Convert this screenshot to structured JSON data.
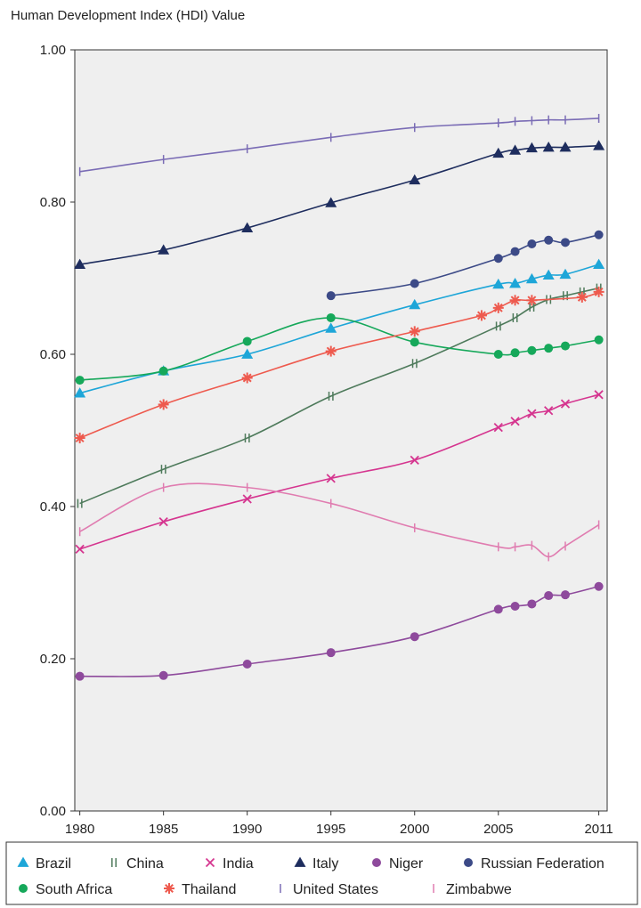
{
  "chart_data": {
    "type": "line",
    "title": "",
    "ylabel": "Human Development Index (HDI) Value",
    "xlabel": "",
    "ylim": [
      0,
      1
    ],
    "yticks": [
      "0.00",
      "0.20",
      "0.40",
      "0.60",
      "0.80",
      "1.00"
    ],
    "xticks": [
      "1980",
      "1985",
      "1990",
      "1995",
      "2000",
      "2005",
      "2011"
    ],
    "grid": false,
    "legend_position": "bottom",
    "series": [
      {
        "name": "Brazil",
        "color": "#1ea6d8",
        "marker": "triangle",
        "points": [
          [
            1980,
            0.549
          ],
          [
            1985,
            0.578
          ],
          [
            1990,
            0.6
          ],
          [
            1995,
            0.634
          ],
          [
            2000,
            0.665
          ],
          [
            2005,
            0.692
          ],
          [
            2006,
            0.693
          ],
          [
            2007,
            0.699
          ],
          [
            2008,
            0.704
          ],
          [
            2009,
            0.705
          ],
          [
            2011,
            0.718
          ]
        ]
      },
      {
        "name": "China",
        "color": "#4e7a5b",
        "marker": "double-tick",
        "points": [
          [
            1980,
            0.404
          ],
          [
            1985,
            0.449
          ],
          [
            1990,
            0.49
          ],
          [
            1995,
            0.545
          ],
          [
            2000,
            0.588
          ],
          [
            2005,
            0.637
          ],
          [
            2006,
            0.648
          ],
          [
            2007,
            0.662
          ],
          [
            2008,
            0.672
          ],
          [
            2009,
            0.677
          ],
          [
            2010,
            0.682
          ],
          [
            2011,
            0.687
          ]
        ]
      },
      {
        "name": "India",
        "color": "#d5358f",
        "marker": "x",
        "points": [
          [
            1980,
            0.344
          ],
          [
            1985,
            0.38
          ],
          [
            1990,
            0.41
          ],
          [
            1995,
            0.437
          ],
          [
            2000,
            0.461
          ],
          [
            2005,
            0.504
          ],
          [
            2006,
            0.512
          ],
          [
            2007,
            0.522
          ],
          [
            2008,
            0.526
          ],
          [
            2009,
            0.535
          ],
          [
            2011,
            0.547
          ]
        ]
      },
      {
        "name": "Italy",
        "color": "#1e2d5e",
        "marker": "triangle",
        "points": [
          [
            1980,
            0.718
          ],
          [
            1985,
            0.737
          ],
          [
            1990,
            0.766
          ],
          [
            1995,
            0.799
          ],
          [
            2000,
            0.829
          ],
          [
            2005,
            0.864
          ],
          [
            2006,
            0.868
          ],
          [
            2007,
            0.871
          ],
          [
            2008,
            0.872
          ],
          [
            2009,
            0.872
          ],
          [
            2011,
            0.874
          ]
        ]
      },
      {
        "name": "Niger",
        "color": "#8e4a9c",
        "marker": "circle",
        "points": [
          [
            1980,
            0.177
          ],
          [
            1985,
            0.178
          ],
          [
            1990,
            0.193
          ],
          [
            1995,
            0.208
          ],
          [
            2000,
            0.229
          ],
          [
            2005,
            0.265
          ],
          [
            2006,
            0.269
          ],
          [
            2007,
            0.272
          ],
          [
            2008,
            0.283
          ],
          [
            2009,
            0.284
          ],
          [
            2011,
            0.295
          ]
        ]
      },
      {
        "name": "Russian Federation",
        "color": "#3c4a87",
        "marker": "circle",
        "points": [
          [
            1995,
            0.677
          ],
          [
            2000,
            0.693
          ],
          [
            2005,
            0.726
          ],
          [
            2006,
            0.735
          ],
          [
            2007,
            0.745
          ],
          [
            2008,
            0.75
          ],
          [
            2009,
            0.747
          ],
          [
            2011,
            0.757
          ]
        ]
      },
      {
        "name": "South Africa",
        "color": "#16a85a",
        "marker": "circle",
        "points": [
          [
            1980,
            0.566
          ],
          [
            1985,
            0.578
          ],
          [
            1990,
            0.617
          ],
          [
            1995,
            0.648
          ],
          [
            2000,
            0.616
          ],
          [
            2005,
            0.6
          ],
          [
            2006,
            0.602
          ],
          [
            2007,
            0.605
          ],
          [
            2008,
            0.608
          ],
          [
            2009,
            0.611
          ],
          [
            2011,
            0.619
          ]
        ]
      },
      {
        "name": "Thailand",
        "color": "#ee5a4e",
        "marker": "asterisk",
        "points": [
          [
            1980,
            0.49
          ],
          [
            1985,
            0.534
          ],
          [
            1990,
            0.569
          ],
          [
            1995,
            0.604
          ],
          [
            2000,
            0.63
          ],
          [
            2004,
            0.651
          ],
          [
            2005,
            0.661
          ],
          [
            2006,
            0.671
          ],
          [
            2007,
            0.671
          ],
          [
            2010,
            0.675
          ],
          [
            2011,
            0.682
          ]
        ]
      },
      {
        "name": "United States",
        "color": "#7a6cb5",
        "marker": "vtick",
        "points": [
          [
            1980,
            0.84
          ],
          [
            1985,
            0.856
          ],
          [
            1990,
            0.87
          ],
          [
            1995,
            0.885
          ],
          [
            2000,
            0.898
          ],
          [
            2005,
            0.904
          ],
          [
            2006,
            0.906
          ],
          [
            2007,
            0.907
          ],
          [
            2008,
            0.908
          ],
          [
            2009,
            0.908
          ],
          [
            2011,
            0.91
          ]
        ]
      },
      {
        "name": "Zimbabwe",
        "color": "#e07cb0",
        "marker": "vtick",
        "points": [
          [
            1980,
            0.367
          ],
          [
            1985,
            0.425
          ],
          [
            1990,
            0.425
          ],
          [
            1995,
            0.404
          ],
          [
            2000,
            0.372
          ],
          [
            2005,
            0.347
          ],
          [
            2006,
            0.347
          ],
          [
            2007,
            0.349
          ],
          [
            2008,
            0.334
          ],
          [
            2009,
            0.348
          ],
          [
            2011,
            0.376
          ]
        ]
      }
    ]
  }
}
